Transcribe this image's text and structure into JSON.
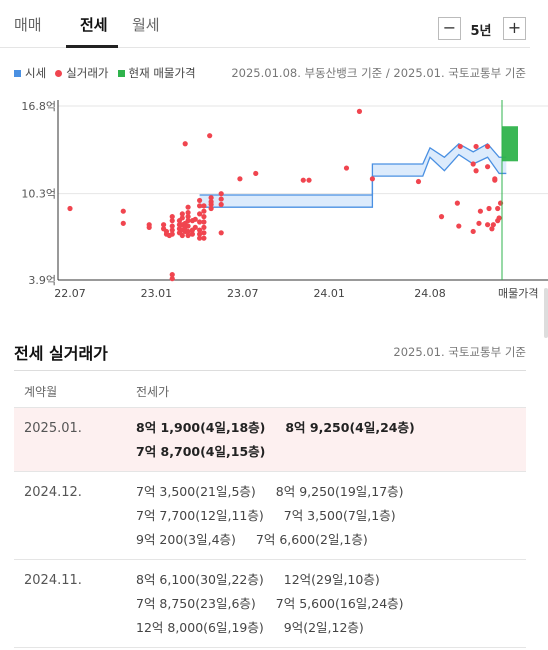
{
  "tabs": [
    {
      "label": "매매",
      "active": false
    },
    {
      "label": "전세",
      "active": true
    },
    {
      "label": "월세",
      "active": false
    }
  ],
  "period": {
    "minus": "−",
    "value": "5년",
    "plus": "+"
  },
  "legend": {
    "market": "시세",
    "actual": "실거래가",
    "current": "현재 매물가격"
  },
  "source_top": "2025.01.08. 부동산뱅크 기준 / 2025.01. 국토교통부 기준",
  "colors": {
    "market": "#4a90e2",
    "actual": "#f0454f",
    "current": "#2fb34c",
    "axis": "#333"
  },
  "chart_data": {
    "type": "scatter",
    "y_ticks": [
      "16.8억",
      "10.3억",
      "3.9억"
    ],
    "y_tick_values": [
      16.8,
      10.3,
      3.9
    ],
    "ylim": [
      3.9,
      16.8
    ],
    "x_ticks": [
      "22.07",
      "23.01",
      "23.07",
      "24.01",
      "24.08",
      "매물가격"
    ],
    "x_tick_values": [
      0,
      6,
      12,
      18,
      25,
      30
    ],
    "xlim": [
      0,
      30
    ],
    "series": [
      {
        "name": "실거래가",
        "points": [
          [
            0,
            9.2
          ],
          [
            3.7,
            9.0
          ],
          [
            3.7,
            8.1
          ],
          [
            5.5,
            8.0
          ],
          [
            5.5,
            7.8
          ],
          [
            6.5,
            8.0
          ],
          [
            6.5,
            7.7
          ],
          [
            6.7,
            7.5
          ],
          [
            6.7,
            7.3
          ],
          [
            6.9,
            7.2
          ],
          [
            7.1,
            8.6
          ],
          [
            7.1,
            8.3
          ],
          [
            7.1,
            7.9
          ],
          [
            7.1,
            7.6
          ],
          [
            7.1,
            7.3
          ],
          [
            7.6,
            8.3
          ],
          [
            7.6,
            8.0
          ],
          [
            7.6,
            7.7
          ],
          [
            7.6,
            7.4
          ],
          [
            7.8,
            8.8
          ],
          [
            7.8,
            8.5
          ],
          [
            7.8,
            8.0
          ],
          [
            7.8,
            7.6
          ],
          [
            7.8,
            7.2
          ],
          [
            8.0,
            8.1
          ],
          [
            8.0,
            7.8
          ],
          [
            8.0,
            7.5
          ],
          [
            8.2,
            9.3
          ],
          [
            8.2,
            8.9
          ],
          [
            8.2,
            8.6
          ],
          [
            8.2,
            8.3
          ],
          [
            8.2,
            7.9
          ],
          [
            8.2,
            7.5
          ],
          [
            8.2,
            7.2
          ],
          [
            8.5,
            8.3
          ],
          [
            8.5,
            7.6
          ],
          [
            8.5,
            7.3
          ],
          [
            9.0,
            9.8
          ],
          [
            9.0,
            9.4
          ],
          [
            9.0,
            8.8
          ],
          [
            9.0,
            8.2
          ],
          [
            9.0,
            7.6
          ],
          [
            9.0,
            7.3
          ],
          [
            9.0,
            7.0
          ],
          [
            8.7,
            8.4
          ],
          [
            8.7,
            7.8
          ],
          [
            9.3,
            9.4
          ],
          [
            9.3,
            9.0
          ],
          [
            9.3,
            8.6
          ],
          [
            9.3,
            8.2
          ],
          [
            9.3,
            7.8
          ],
          [
            9.3,
            7.4
          ],
          [
            9.3,
            7.0
          ],
          [
            9.8,
            10.0
          ],
          [
            9.8,
            9.7
          ],
          [
            9.8,
            9.5
          ],
          [
            9.8,
            9.2
          ],
          [
            10.5,
            10.3
          ],
          [
            10.5,
            9.9
          ],
          [
            10.5,
            9.5
          ],
          [
            10.5,
            7.4
          ],
          [
            11.8,
            11.4
          ],
          [
            12.9,
            11.8
          ],
          [
            16.2,
            11.3
          ],
          [
            16.6,
            11.3
          ],
          [
            19.2,
            12.2
          ],
          [
            21.0,
            11.4
          ],
          [
            8.0,
            14.0
          ],
          [
            9.7,
            14.6
          ],
          [
            20.1,
            16.4
          ],
          [
            7.1,
            4.3
          ],
          [
            7.1,
            4.0
          ],
          [
            24.2,
            11.2
          ],
          [
            25.8,
            8.6
          ],
          [
            27.1,
            13.8
          ],
          [
            28.0,
            12.5
          ],
          [
            28.2,
            13.8
          ],
          [
            29.0,
            13.8
          ],
          [
            29.5,
            11.3
          ],
          [
            26.9,
            9.6
          ],
          [
            27.0,
            7.9
          ],
          [
            28.0,
            7.5
          ],
          [
            28.4,
            8.1
          ],
          [
            28.5,
            9.0
          ],
          [
            29.0,
            8.0
          ],
          [
            29.1,
            9.2
          ],
          [
            29.3,
            7.7
          ],
          [
            29.4,
            8.0
          ],
          [
            29.7,
            9.2
          ],
          [
            29.7,
            8.3
          ],
          [
            29.8,
            8.5
          ],
          [
            29.9,
            9.6
          ],
          [
            28.2,
            12.0
          ],
          [
            29.0,
            12.3
          ],
          [
            29.5,
            11.4
          ]
        ]
      },
      {
        "name": "시세",
        "band_lower": [
          [
            9.0,
            9.3
          ],
          [
            21.0,
            9.3
          ],
          [
            21.0,
            11.6
          ],
          [
            22.0,
            11.6
          ],
          [
            24.5,
            11.6
          ],
          [
            25.0,
            13.0
          ],
          [
            26.0,
            12.0
          ],
          [
            27.0,
            13.2
          ],
          [
            28.0,
            12.5
          ],
          [
            29.0,
            13.0
          ],
          [
            29.8,
            11.8
          ],
          [
            30.3,
            11.8
          ]
        ],
        "band_upper": [
          [
            9.0,
            10.2
          ],
          [
            21.0,
            10.2
          ],
          [
            21.0,
            12.5
          ],
          [
            22.0,
            12.5
          ],
          [
            24.5,
            12.5
          ],
          [
            25.0,
            13.7
          ],
          [
            26.0,
            13.0
          ],
          [
            27.0,
            14.0
          ],
          [
            28.0,
            13.4
          ],
          [
            29.0,
            14.0
          ],
          [
            29.8,
            13.0
          ],
          [
            30.3,
            13.0
          ]
        ]
      },
      {
        "name": "현재 매물가격",
        "range": [
          12.7,
          15.3
        ]
      }
    ]
  },
  "section": {
    "title": "전세 실거래가",
    "source": "2025.01. 국토교통부 기준"
  },
  "table": {
    "headers": {
      "month": "계약월",
      "price": "전세가"
    },
    "rows": [
      {
        "month": "2025.01.",
        "highlight": true,
        "deals": [
          "8억 1,900(4일,18층)",
          "8억 9,250(4일,24층)",
          "7억 8,700(4일,15층)"
        ]
      },
      {
        "month": "2024.12.",
        "highlight": false,
        "deals": [
          "7억 3,500(21일,5층)",
          "8억 9,250(19일,17층)",
          "7억 7,700(12일,11층)",
          "7억 3,500(7일,1층)",
          "9억 200(3일,4층)",
          "7억 6,600(2일,1층)"
        ]
      },
      {
        "month": "2024.11.",
        "highlight": false,
        "deals": [
          "8억 6,100(30일,22층)",
          "12억(29일,10층)",
          "7억 8,750(23일,6층)",
          "7억 5,600(16일,24층)",
          "12억 8,000(6일,19층)",
          "9억(2일,12층)"
        ]
      }
    ]
  }
}
